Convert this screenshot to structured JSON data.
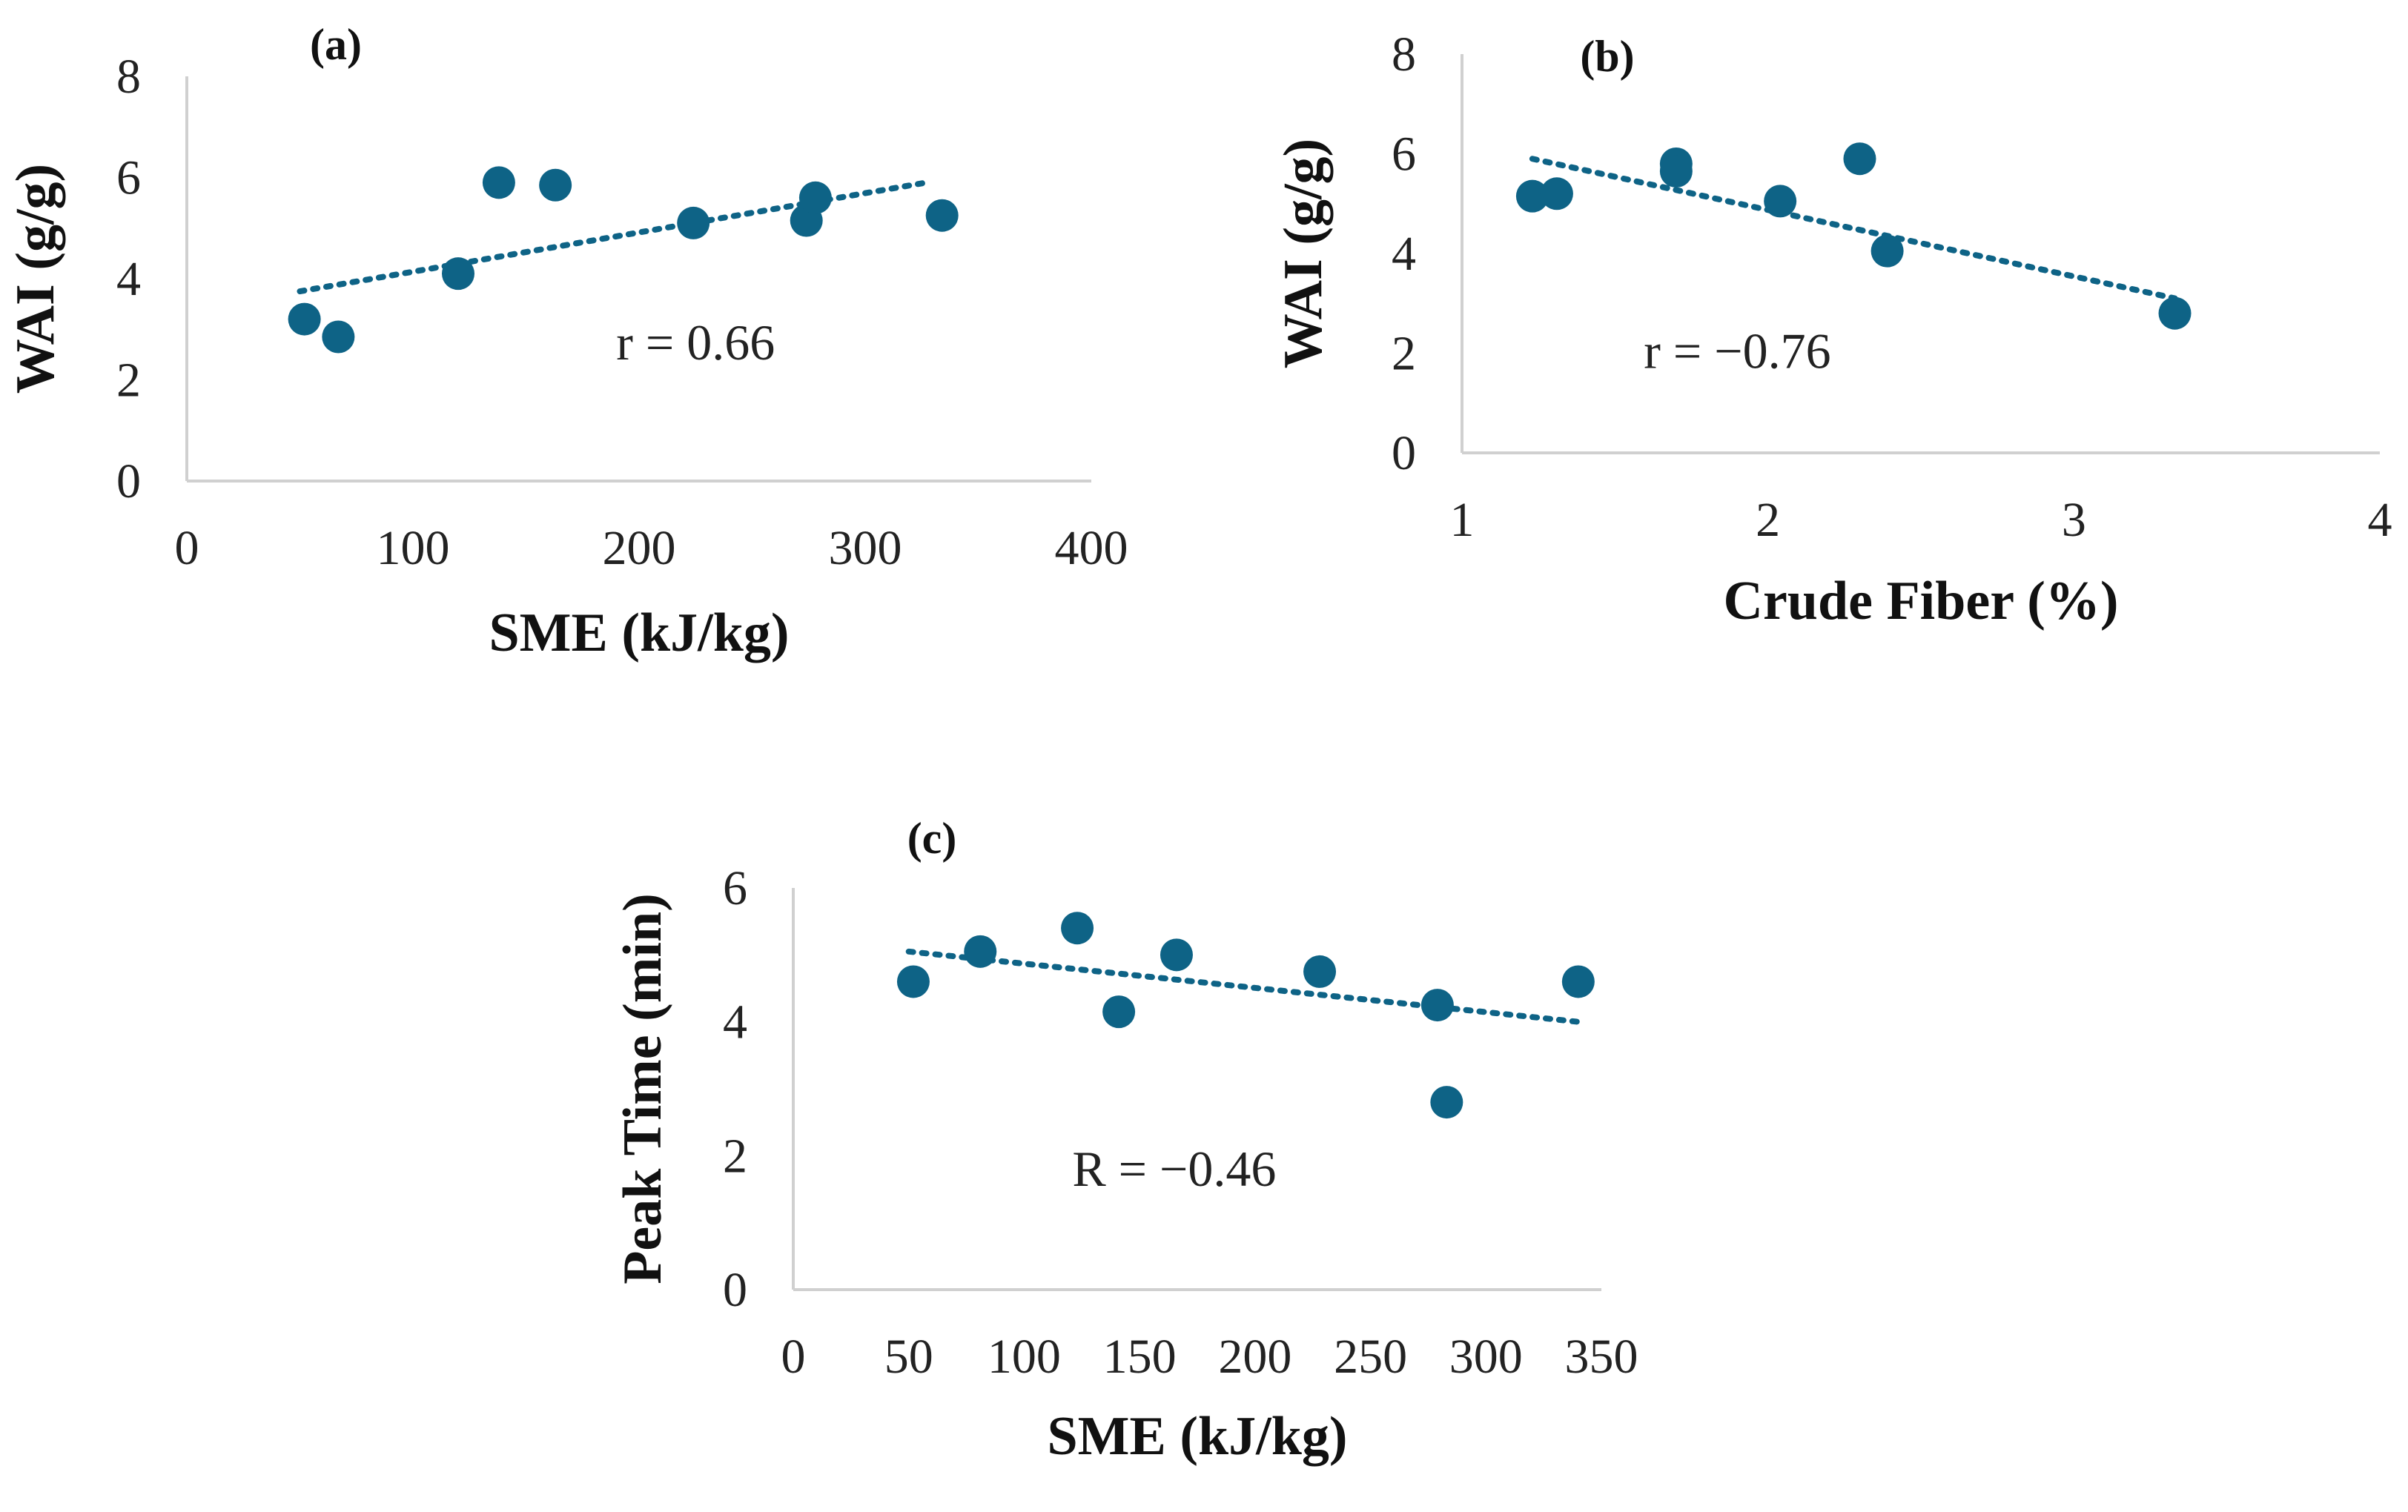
{
  "figure": {
    "background": "#ffffff",
    "marker_color": "#0e6386",
    "axis_color": "#d0d0d0"
  },
  "chart_data": [
    {
      "type": "scatter",
      "panel_label": "(a)",
      "xlabel": "SME (kJ/kg)",
      "ylabel": "WAI (g/g)",
      "xlim": [
        0,
        400
      ],
      "ylim": [
        0,
        8
      ],
      "xticks": [
        0,
        100,
        200,
        300,
        400
      ],
      "yticks": [
        0,
        2,
        4,
        6,
        8
      ],
      "points": [
        {
          "x": 52,
          "y": 3.2
        },
        {
          "x": 67,
          "y": 2.85
        },
        {
          "x": 120,
          "y": 4.1
        },
        {
          "x": 138,
          "y": 5.9
        },
        {
          "x": 163,
          "y": 5.85
        },
        {
          "x": 224,
          "y": 5.1
        },
        {
          "x": 274,
          "y": 5.15
        },
        {
          "x": 278,
          "y": 5.6
        },
        {
          "x": 334,
          "y": 5.25
        }
      ],
      "trendline": {
        "x": [
          50,
          327
        ],
        "y": [
          3.75,
          5.9
        ]
      },
      "annotation": "r = 0.66",
      "annotation_pos": {
        "x": 225,
        "y": 2.4
      }
    },
    {
      "type": "scatter",
      "panel_label": "(b)",
      "xlabel": "Crude Fiber (%)",
      "ylabel": "WAI (g/g)",
      "xlim": [
        1,
        4
      ],
      "ylim": [
        0,
        8
      ],
      "xticks": [
        1,
        2,
        3,
        4
      ],
      "yticks": [
        0,
        2,
        4,
        6,
        8
      ],
      "points": [
        {
          "x": 1.23,
          "y": 5.15
        },
        {
          "x": 1.31,
          "y": 5.2
        },
        {
          "x": 1.7,
          "y": 5.8
        },
        {
          "x": 1.7,
          "y": 5.65
        },
        {
          "x": 2.04,
          "y": 5.05
        },
        {
          "x": 2.3,
          "y": 5.9
        },
        {
          "x": 2.39,
          "y": 4.05
        },
        {
          "x": 3.33,
          "y": 2.8
        }
      ],
      "trendline": {
        "x": [
          1.23,
          3.33
        ],
        "y": [
          5.9,
          3.1
        ]
      },
      "annotation": "r = −0.76",
      "annotation_pos": {
        "x": 1.9,
        "y": 1.7
      }
    },
    {
      "type": "scatter",
      "panel_label": "(c)",
      "xlabel": "SME (kJ/kg)",
      "ylabel": "Peak Time (min)",
      "xlim": [
        0,
        350
      ],
      "ylim": [
        0,
        6
      ],
      "xticks": [
        0,
        50,
        100,
        150,
        200,
        250,
        300,
        350
      ],
      "yticks": [
        0,
        2,
        4,
        6
      ],
      "points": [
        {
          "x": 52,
          "y": 4.6
        },
        {
          "x": 81,
          "y": 5.05
        },
        {
          "x": 123,
          "y": 5.4
        },
        {
          "x": 141,
          "y": 4.15
        },
        {
          "x": 166,
          "y": 5.0
        },
        {
          "x": 228,
          "y": 4.75
        },
        {
          "x": 279,
          "y": 4.25
        },
        {
          "x": 283,
          "y": 2.8
        },
        {
          "x": 340,
          "y": 4.6
        }
      ],
      "trendline": {
        "x": [
          50,
          340
        ],
        "y": [
          5.05,
          4.0
        ]
      },
      "annotation": "R = −0.46",
      "annotation_pos": {
        "x": 165,
        "y": 1.55
      }
    }
  ]
}
